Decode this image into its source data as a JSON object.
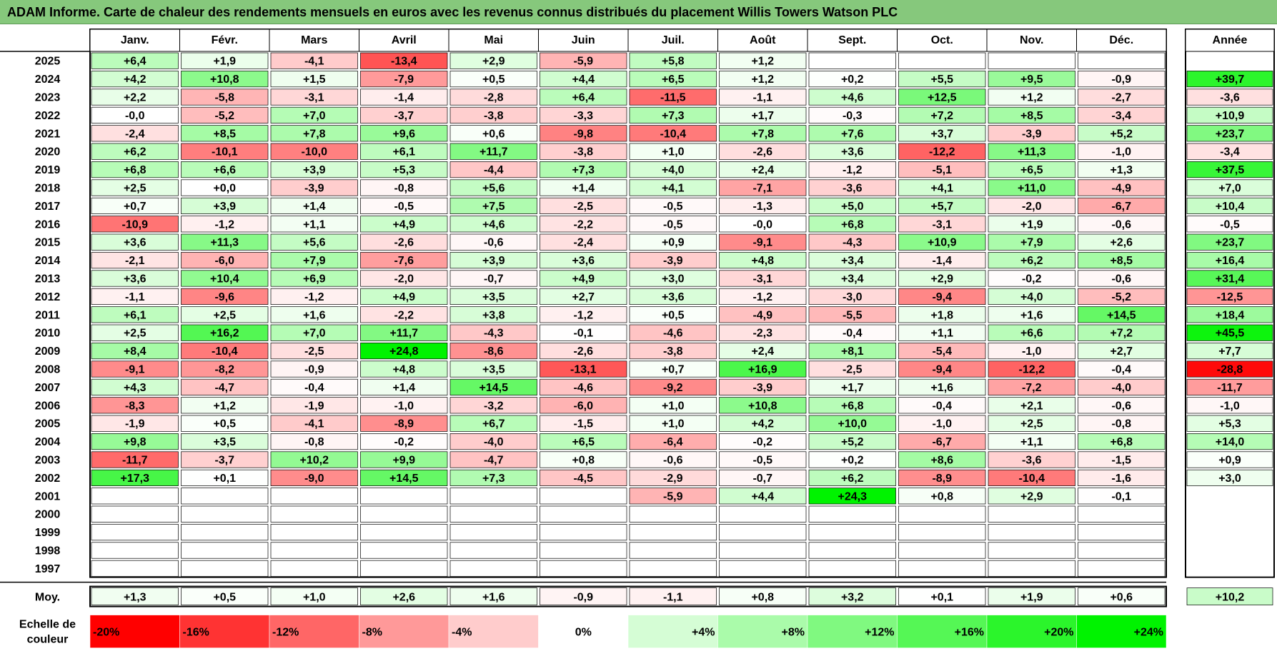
{
  "title": "ADAM Informe. Carte de chaleur des rendements mensuels en euros avec les revenus connus distribués du placement Willis Towers Watson PLC",
  "chart_data": {
    "type": "heatmap",
    "months": [
      "Janv.",
      "Févr.",
      "Mars",
      "Avril",
      "Mai",
      "Juin",
      "Juil.",
      "Août",
      "Sept.",
      "Oct.",
      "Nov.",
      "Déc."
    ],
    "year_header": "Année",
    "rows": [
      {
        "year": "2025",
        "values": [
          "+6,4",
          "+1,9",
          "-4,1",
          "-13,4",
          "+2,9",
          "-5,9",
          "+5,8",
          "+1,2",
          "",
          "",
          "",
          ""
        ],
        "annual": ""
      },
      {
        "year": "2024",
        "values": [
          "+4,2",
          "+10,8",
          "+1,5",
          "-7,9",
          "+0,5",
          "+4,4",
          "+6,5",
          "+1,2",
          "+0,2",
          "+5,5",
          "+9,5",
          "-0,9"
        ],
        "annual": "+39,7"
      },
      {
        "year": "2023",
        "values": [
          "+2,2",
          "-5,8",
          "-3,1",
          "-1,4",
          "-2,8",
          "+6,4",
          "-11,5",
          "-1,1",
          "+4,6",
          "+12,5",
          "+1,2",
          "-2,7"
        ],
        "annual": "-3,6"
      },
      {
        "year": "2022",
        "values": [
          "-0,0",
          "-5,2",
          "+7,0",
          "-3,7",
          "-3,8",
          "-3,3",
          "+7,3",
          "+1,7",
          "-0,3",
          "+7,2",
          "+8,5",
          "-3,4"
        ],
        "annual": "+10,9"
      },
      {
        "year": "2021",
        "values": [
          "-2,4",
          "+8,5",
          "+7,8",
          "+9,6",
          "+0,6",
          "-9,8",
          "-10,4",
          "+7,8",
          "+7,6",
          "+3,7",
          "-3,9",
          "+5,2"
        ],
        "annual": "+23,7"
      },
      {
        "year": "2020",
        "values": [
          "+6,2",
          "-10,1",
          "-10,0",
          "+6,1",
          "+11,7",
          "-3,8",
          "+1,0",
          "-2,6",
          "+3,6",
          "-12,2",
          "+11,3",
          "-1,0"
        ],
        "annual": "-3,4"
      },
      {
        "year": "2019",
        "values": [
          "+6,8",
          "+6,6",
          "+3,9",
          "+5,3",
          "-4,4",
          "+7,3",
          "+4,0",
          "+2,4",
          "-1,2",
          "-5,1",
          "+6,5",
          "+1,3"
        ],
        "annual": "+37,5"
      },
      {
        "year": "2018",
        "values": [
          "+2,5",
          "+0,0",
          "-3,9",
          "-0,8",
          "+5,6",
          "+1,4",
          "+4,1",
          "-7,1",
          "-3,6",
          "+4,1",
          "+11,0",
          "-4,9"
        ],
        "annual": "+7,0"
      },
      {
        "year": "2017",
        "values": [
          "+0,7",
          "+3,9",
          "+1,4",
          "-0,5",
          "+7,5",
          "-2,5",
          "-0,5",
          "-1,3",
          "+5,0",
          "+5,7",
          "-2,0",
          "-6,7"
        ],
        "annual": "+10,4"
      },
      {
        "year": "2016",
        "values": [
          "-10,9",
          "-1,2",
          "+1,1",
          "+4,9",
          "+4,6",
          "-2,2",
          "-0,5",
          "-0,0",
          "+6,8",
          "-3,1",
          "+1,9",
          "-0,6"
        ],
        "annual": "-0,5"
      },
      {
        "year": "2015",
        "values": [
          "+3,6",
          "+11,3",
          "+5,6",
          "-2,6",
          "-0,6",
          "-2,4",
          "+0,9",
          "-9,1",
          "-4,3",
          "+10,9",
          "+7,9",
          "+2,6"
        ],
        "annual": "+23,7"
      },
      {
        "year": "2014",
        "values": [
          "-2,1",
          "-6,0",
          "+7,9",
          "-7,6",
          "+3,9",
          "+3,6",
          "-3,9",
          "+4,8",
          "+3,4",
          "-1,4",
          "+6,2",
          "+8,5"
        ],
        "annual": "+16,4"
      },
      {
        "year": "2013",
        "values": [
          "+3,6",
          "+10,4",
          "+6,9",
          "-2,0",
          "-0,7",
          "+4,9",
          "+3,0",
          "-3,1",
          "+3,4",
          "+2,9",
          "-0,2",
          "-0,6"
        ],
        "annual": "+31,4"
      },
      {
        "year": "2012",
        "values": [
          "-1,1",
          "-9,6",
          "-1,2",
          "+4,9",
          "+3,5",
          "+2,7",
          "+3,6",
          "-1,2",
          "-3,0",
          "-9,4",
          "+4,0",
          "-5,2"
        ],
        "annual": "-12,5"
      },
      {
        "year": "2011",
        "values": [
          "+6,1",
          "+2,5",
          "+1,6",
          "-2,2",
          "+3,8",
          "-1,2",
          "+0,5",
          "-4,9",
          "-5,5",
          "+1,8",
          "+1,6",
          "+14,5"
        ],
        "annual": "+18,4"
      },
      {
        "year": "2010",
        "values": [
          "+2,5",
          "+16,2",
          "+7,0",
          "+11,7",
          "-4,3",
          "-0,1",
          "-4,6",
          "-2,3",
          "-0,4",
          "+1,1",
          "+6,6",
          "+7,2"
        ],
        "annual": "+45,5"
      },
      {
        "year": "2009",
        "values": [
          "+8,4",
          "-10,4",
          "-2,5",
          "+24,8",
          "-8,6",
          "-2,6",
          "-3,8",
          "+2,4",
          "+8,1",
          "-5,4",
          "-1,0",
          "+2,7"
        ],
        "annual": "+7,7"
      },
      {
        "year": "2008",
        "values": [
          "-9,1",
          "-8,2",
          "-0,9",
          "+4,8",
          "+3,5",
          "-13,1",
          "+0,7",
          "+16,9",
          "-2,5",
          "-9,4",
          "-12,2",
          "-0,4"
        ],
        "annual": "-28,8"
      },
      {
        "year": "2007",
        "values": [
          "+4,3",
          "-4,7",
          "-0,4",
          "+1,4",
          "+14,5",
          "-4,6",
          "-9,2",
          "-3,9",
          "+1,7",
          "+1,6",
          "-7,2",
          "-4,0"
        ],
        "annual": "-11,7"
      },
      {
        "year": "2006",
        "values": [
          "-8,3",
          "+1,2",
          "-1,9",
          "-1,0",
          "-3,2",
          "-6,0",
          "+1,0",
          "+10,8",
          "+6,8",
          "-0,4",
          "+2,1",
          "-0,6"
        ],
        "annual": "-1,0"
      },
      {
        "year": "2005",
        "values": [
          "-1,9",
          "+0,5",
          "-4,1",
          "-8,9",
          "+6,7",
          "-1,5",
          "+1,0",
          "+4,2",
          "+10,0",
          "-1,0",
          "+2,5",
          "-0,8"
        ],
        "annual": "+5,3"
      },
      {
        "year": "2004",
        "values": [
          "+9,8",
          "+3,5",
          "-0,8",
          "-0,2",
          "-4,0",
          "+6,5",
          "-6,4",
          "-0,2",
          "+5,2",
          "-6,7",
          "+1,1",
          "+6,8"
        ],
        "annual": "+14,0"
      },
      {
        "year": "2003",
        "values": [
          "-11,7",
          "-3,7",
          "+10,2",
          "+9,9",
          "-4,7",
          "+0,8",
          "-0,6",
          "-0,5",
          "+0,2",
          "+8,6",
          "-3,6",
          "-1,5"
        ],
        "annual": "+0,9"
      },
      {
        "year": "2002",
        "values": [
          "+17,3",
          "+0,1",
          "-9,0",
          "+14,5",
          "+7,3",
          "-4,5",
          "-2,9",
          "-0,7",
          "+6,2",
          "-8,9",
          "-10,4",
          "-1,6"
        ],
        "annual": "+3,0"
      },
      {
        "year": "2001",
        "values": [
          "",
          "",
          "",
          "",
          "",
          "",
          "-5,9",
          "+4,4",
          "+24,3",
          "+0,8",
          "+2,9",
          "-0,1"
        ],
        "annual": ""
      },
      {
        "year": "2000",
        "values": [
          "",
          "",
          "",
          "",
          "",
          "",
          "",
          "",
          "",
          "",
          "",
          ""
        ],
        "annual": ""
      },
      {
        "year": "1999",
        "values": [
          "",
          "",
          "",
          "",
          "",
          "",
          "",
          "",
          "",
          "",
          "",
          ""
        ],
        "annual": ""
      },
      {
        "year": "1998",
        "values": [
          "",
          "",
          "",
          "",
          "",
          "",
          "",
          "",
          "",
          "",
          "",
          ""
        ],
        "annual": ""
      },
      {
        "year": "1997",
        "values": [
          "",
          "",
          "",
          "",
          "",
          "",
          "",
          "",
          "",
          "",
          "",
          ""
        ],
        "annual": ""
      }
    ],
    "average": {
      "label": "Moy.",
      "values": [
        "+1,3",
        "+0,5",
        "+1,0",
        "+2,6",
        "+1,6",
        "-0,9",
        "-1,1",
        "+0,8",
        "+3,2",
        "+0,1",
        "+1,9",
        "+0,6"
      ],
      "annual": "+10,2"
    },
    "scale": {
      "label_line1": "Echelle de",
      "label_line2": "couleur",
      "stops": [
        {
          "label": "-20%",
          "value": -20,
          "color": "#ff0000"
        },
        {
          "label": "-16%",
          "value": -16,
          "color": "#ff3333"
        },
        {
          "label": "-12%",
          "value": -12,
          "color": "#ff6666"
        },
        {
          "label": "-8%",
          "value": -8,
          "color": "#ff9999"
        },
        {
          "label": "-4%",
          "value": -4,
          "color": "#ffcccc"
        },
        {
          "label": "0%",
          "value": 0,
          "color": "#ffffff"
        },
        {
          "label": "+4%",
          "value": 4,
          "color": "#d5fdd5"
        },
        {
          "label": "+8%",
          "value": 8,
          "color": "#aafbaa"
        },
        {
          "label": "+12%",
          "value": 12,
          "color": "#80f980"
        },
        {
          "label": "+16%",
          "value": 16,
          "color": "#55f755"
        },
        {
          "label": "+20%",
          "value": 20,
          "color": "#2bf52b"
        },
        {
          "label": "+24%",
          "value": 24,
          "color": "#00f300"
        }
      ]
    }
  }
}
